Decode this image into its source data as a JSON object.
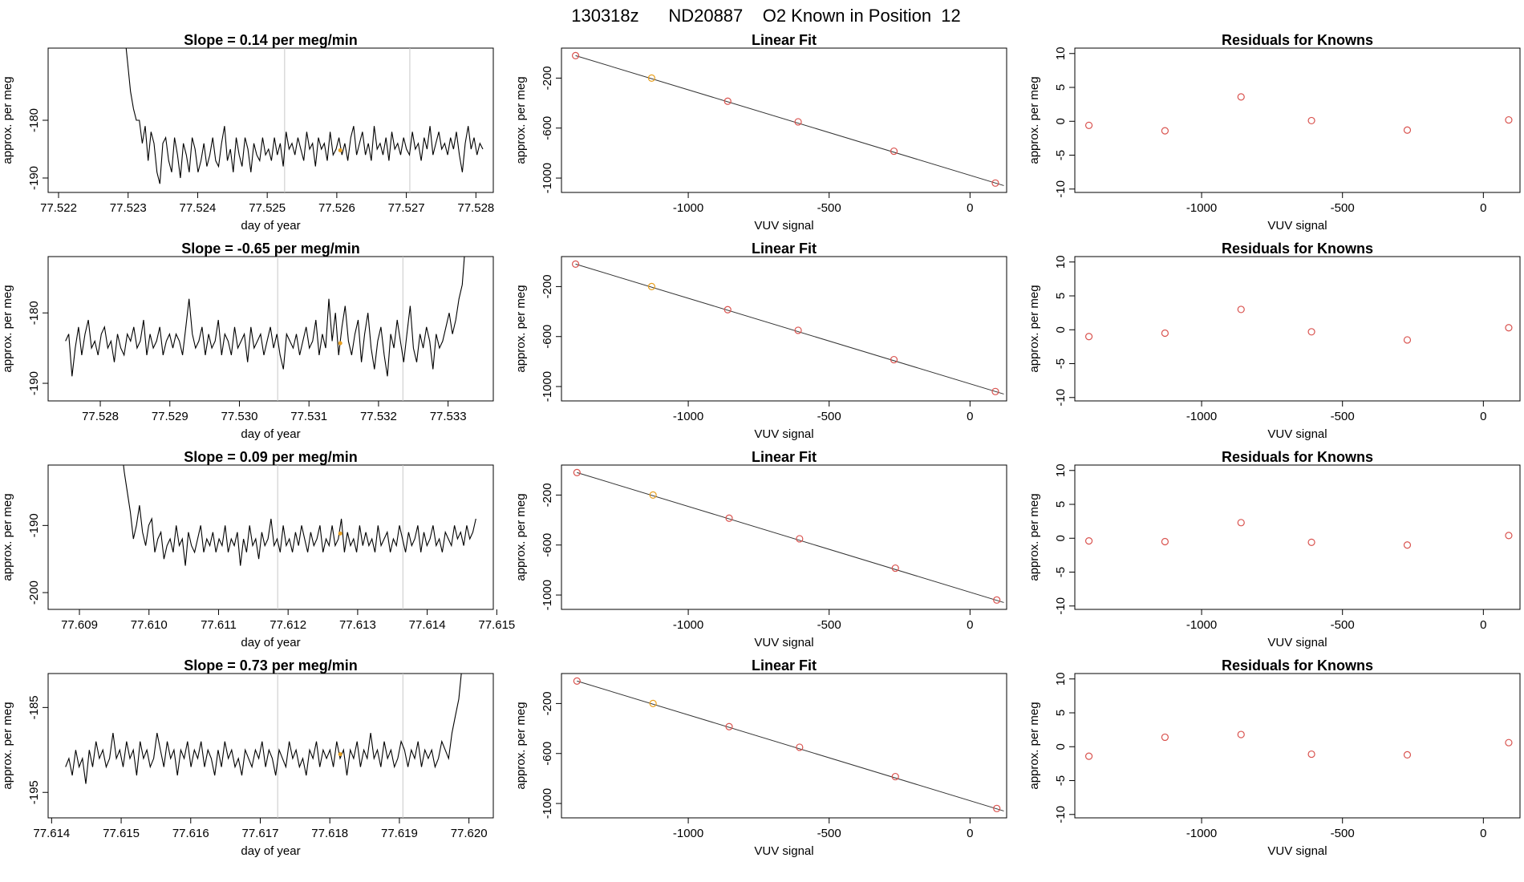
{
  "figure": {
    "title": "130318z      ND20887    O2 Known in Position  12"
  },
  "style": {
    "trace_color": "#000000",
    "vline_color": "#c8c8c8",
    "marker_color": "#e8a020",
    "circle_color": "#d9534f",
    "fit_color": "#333333"
  },
  "chart_data": [
    {
      "type": "line",
      "title": "Slope =  0.14  per meg/min",
      "xlabel": "day of year",
      "ylabel": "approx. per meg",
      "xlim": [
        77.52185,
        77.52825
      ],
      "ylim": [
        -192.5,
        -167.5
      ],
      "xticks": [
        "77.522",
        "77.523",
        "77.524",
        "77.525",
        "77.526",
        "77.527",
        "77.528"
      ],
      "yticks": [
        "-180",
        "-190"
      ],
      "vlines": [
        77.52525,
        77.52705
      ],
      "series_x": [
        77.52295,
        77.5281
      ],
      "series_y": [
        -165,
        -170,
        -175,
        -178,
        -180,
        -180,
        -184,
        -181,
        -187,
        -182,
        -184,
        -189,
        -191,
        -184,
        -183,
        -187,
        -189,
        -183,
        -186,
        -190,
        -184,
        -186,
        -189,
        -183,
        -185,
        -189,
        -187,
        -184,
        -188,
        -186,
        -183,
        -187,
        -188,
        -184,
        -181,
        -187,
        -185,
        -189,
        -183,
        -186,
        -188,
        -183,
        -185,
        -189,
        -184,
        -186,
        -187,
        -183,
        -186,
        -185,
        -187,
        -183,
        -186,
        -184,
        -188,
        -182,
        -185,
        -184,
        -186,
        -183,
        -185,
        -187,
        -182,
        -185,
        -184,
        -188,
        -183,
        -185,
        -184,
        -187,
        -182,
        -186,
        -185,
        -183,
        -186,
        -184,
        -187,
        -183,
        -181,
        -186,
        -184,
        -182,
        -186,
        -184,
        -187,
        -181,
        -185,
        -184,
        -186,
        -183,
        -187,
        -182,
        -185,
        -184,
        -186,
        -183,
        -185,
        -186,
        -182,
        -185,
        -184,
        -187,
        -183,
        -185,
        -181,
        -186,
        -184,
        -182,
        -185,
        -184,
        -186,
        -183,
        -185,
        -182,
        -186,
        -189,
        -184,
        -181,
        -185,
        -183,
        -186,
        -184,
        -185
      ],
      "marker": [
        77.52605,
        -185.2
      ]
    },
    {
      "type": "line",
      "title": "Slope =  -0.65  per meg/min",
      "xlabel": "day of year",
      "ylabel": "approx. per meg",
      "xlim": [
        77.52725,
        77.53365
      ],
      "ylim": [
        -192.5,
        -172
      ],
      "xticks": [
        "77.528",
        "77.529",
        "77.530",
        "77.531",
        "77.532",
        "77.533"
      ],
      "yticks": [
        "-180",
        "-190"
      ],
      "vlines": [
        77.53055,
        77.53235
      ],
      "series_x": [
        77.5275,
        77.53325
      ],
      "series_y": [
        -184,
        -183,
        -189,
        -185,
        -182,
        -186,
        -183,
        -181,
        -185,
        -184,
        -186,
        -183,
        -182,
        -185,
        -184,
        -187,
        -183,
        -185,
        -186,
        -183,
        -184,
        -182,
        -185,
        -184,
        -181,
        -186,
        -183,
        -185,
        -184,
        -182,
        -186,
        -184,
        -183,
        -185,
        -183,
        -184,
        -186,
        -182,
        -178,
        -183,
        -185,
        -184,
        -182,
        -186,
        -183,
        -185,
        -184,
        -181,
        -186,
        -183,
        -184,
        -186,
        -182,
        -185,
        -184,
        -183,
        -187,
        -182,
        -185,
        -184,
        -183,
        -186,
        -184,
        -182,
        -185,
        -183,
        -186,
        -188,
        -183,
        -184,
        -185,
        -183,
        -186,
        -184,
        -182,
        -185,
        -184,
        -181,
        -186,
        -183,
        -185,
        -178,
        -184,
        -180,
        -186,
        -182,
        -179,
        -184,
        -186,
        -183,
        -181,
        -187,
        -183,
        -180,
        -185,
        -188,
        -184,
        -182,
        -186,
        -189,
        -183,
        -185,
        -181,
        -184,
        -187,
        -183,
        -179,
        -185,
        -187,
        -183,
        -185,
        -182,
        -184,
        -188,
        -183,
        -185,
        -184,
        -182,
        -180,
        -183,
        -181,
        -178,
        -176,
        -170
      ],
      "marker": [
        77.53145,
        -184.3
      ]
    },
    {
      "type": "line",
      "title": "Slope =  0.09  per meg/min",
      "xlabel": "day of year",
      "ylabel": "approx. per meg",
      "xlim": [
        77.60855,
        77.61495
      ],
      "ylim": [
        -202.5,
        -181
      ],
      "xticks": [
        "77.609",
        "77.610",
        "77.611",
        "77.612",
        "77.613",
        "77.614",
        "77.615"
      ],
      "yticks": [
        "-190",
        "-200"
      ],
      "vlines": [
        77.61185,
        77.61365
      ],
      "series_x": [
        77.6096,
        77.6147
      ],
      "series_y": [
        -178,
        -182,
        -185,
        -188,
        -192,
        -190,
        -187,
        -191,
        -193,
        -190,
        -189,
        -194,
        -192,
        -191,
        -195,
        -193,
        -192,
        -194,
        -190,
        -193,
        -192,
        -196,
        -191,
        -193,
        -194,
        -192,
        -190,
        -194,
        -192,
        -193,
        -191,
        -194,
        -192,
        -193,
        -190,
        -194,
        -192,
        -193,
        -191,
        -196,
        -192,
        -194,
        -190,
        -193,
        -192,
        -195,
        -191,
        -193,
        -192,
        -189,
        -193,
        -192,
        -194,
        -190,
        -193,
        -192,
        -194,
        -191,
        -193,
        -190,
        -192,
        -194,
        -191,
        -193,
        -192,
        -190,
        -194,
        -192,
        -193,
        -190,
        -193,
        -192,
        -189,
        -194,
        -191,
        -193,
        -192,
        -194,
        -190,
        -193,
        -191,
        -193,
        -192,
        -194,
        -190,
        -193,
        -192,
        -191,
        -194,
        -192,
        -193,
        -190,
        -192,
        -194,
        -191,
        -193,
        -192,
        -190,
        -194,
        -191,
        -193,
        -192,
        -190,
        -193,
        -192,
        -194,
        -191,
        -192,
        -193,
        -190,
        -192,
        -191,
        -193,
        -190,
        -192,
        -191,
        -189
      ],
      "marker": [
        77.61275,
        -191.2
      ]
    },
    {
      "type": "line",
      "title": "Slope =  0.73  per meg/min",
      "xlabel": "day of year",
      "ylabel": "approx. per meg",
      "xlim": [
        77.61395,
        77.62035
      ],
      "ylim": [
        -198,
        -181
      ],
      "xticks": [
        "77.614",
        "77.615",
        "77.616",
        "77.617",
        "77.618",
        "77.619",
        "77.620"
      ],
      "yticks": [
        "-185",
        "-195"
      ],
      "vlines": [
        77.61725,
        77.61905
      ],
      "series_x": [
        77.6142,
        77.62
      ],
      "series_y": [
        -192,
        -191,
        -193,
        -190,
        -192,
        -191,
        -194,
        -190,
        -192,
        -189,
        -191,
        -190,
        -192,
        -191,
        -188,
        -191,
        -190,
        -192,
        -189,
        -191,
        -190,
        -193,
        -189,
        -191,
        -190,
        -192,
        -191,
        -188,
        -190,
        -192,
        -189,
        -191,
        -190,
        -193,
        -190,
        -191,
        -189,
        -192,
        -190,
        -191,
        -189,
        -192,
        -190,
        -191,
        -193,
        -190,
        -192,
        -189,
        -191,
        -190,
        -192,
        -191,
        -193,
        -190,
        -191,
        -192,
        -190,
        -191,
        -189,
        -192,
        -190,
        -191,
        -193,
        -190,
        -191,
        -192,
        -189,
        -191,
        -190,
        -192,
        -191,
        -193,
        -190,
        -191,
        -189,
        -192,
        -190,
        -191,
        -190,
        -192,
        -189,
        -191,
        -190,
        -193,
        -190,
        -191,
        -189,
        -192,
        -190,
        -191,
        -188,
        -191,
        -190,
        -192,
        -189,
        -191,
        -190,
        -192,
        -191,
        -189,
        -190,
        -192,
        -190,
        -191,
        -189,
        -192,
        -190,
        -191,
        -190,
        -192,
        -191,
        -189,
        -190,
        -191,
        -188,
        -186,
        -184,
        -180,
        -176,
        -172
      ],
      "marker": [
        77.61815,
        -190.5
      ]
    },
    {
      "type": "scatter",
      "title": "Linear Fit",
      "xlabel": "VUV signal",
      "ylabel": "approx. per meg",
      "xlim": [
        -1450,
        130
      ],
      "ylim": [
        -1115,
        40
      ],
      "xticks": [
        "-1000",
        "-500",
        "0"
      ],
      "yticks": [
        "-200",
        "-600",
        "-1000"
      ],
      "x": [
        -1400,
        -1130,
        -860,
        -610,
        -270,
        90
      ],
      "y": [
        -20,
        -200,
        -385,
        -550,
        -785,
        -1040
      ],
      "fit": [
        [
          -1400,
          -20
        ],
        [
          120,
          -1060
        ]
      ],
      "highlight_index": 1
    },
    {
      "type": "scatter",
      "title": "Linear Fit",
      "xlabel": "VUV signal",
      "ylabel": "approx. per meg",
      "xlim": [
        -1450,
        130
      ],
      "ylim": [
        -1115,
        40
      ],
      "xticks": [
        "-1000",
        "-500",
        "0"
      ],
      "yticks": [
        "-200",
        "-600",
        "-1000"
      ],
      "x": [
        -1400,
        -1130,
        -860,
        -610,
        -270,
        90
      ],
      "y": [
        -20,
        -200,
        -385,
        -550,
        -785,
        -1040
      ],
      "fit": [
        [
          -1400,
          -20
        ],
        [
          120,
          -1060
        ]
      ],
      "highlight_index": 1
    },
    {
      "type": "scatter",
      "title": "Linear Fit",
      "xlabel": "VUV signal",
      "ylabel": "approx. per meg",
      "xlim": [
        -1450,
        130
      ],
      "ylim": [
        -1115,
        40
      ],
      "xticks": [
        "-1000",
        "-500",
        "0"
      ],
      "yticks": [
        "-200",
        "-600",
        "-1000"
      ],
      "x": [
        -1395,
        -1125,
        -855,
        -605,
        -265,
        95
      ],
      "y": [
        -20,
        -200,
        -385,
        -550,
        -785,
        -1040
      ],
      "fit": [
        [
          -1395,
          -20
        ],
        [
          120,
          -1060
        ]
      ],
      "highlight_index": 1
    },
    {
      "type": "scatter",
      "title": "Linear Fit",
      "xlabel": "VUV signal",
      "ylabel": "approx. per meg",
      "xlim": [
        -1450,
        130
      ],
      "ylim": [
        -1115,
        40
      ],
      "xticks": [
        "-1000",
        "-500",
        "0"
      ],
      "yticks": [
        "-200",
        "-600",
        "-1000"
      ],
      "x": [
        -1395,
        -1125,
        -855,
        -605,
        -265,
        95
      ],
      "y": [
        -20,
        -200,
        -385,
        -550,
        -785,
        -1040
      ],
      "fit": [
        [
          -1395,
          -20
        ],
        [
          120,
          -1060
        ]
      ],
      "highlight_index": 1
    },
    {
      "type": "scatter",
      "title": "Residuals for Knowns",
      "xlabel": "VUV signal",
      "ylabel": "approx. per meg",
      "xlim": [
        -1450,
        130
      ],
      "ylim": [
        -10.5,
        10.8
      ],
      "xticks": [
        "-1000",
        "-500",
        "0"
      ],
      "yticks": [
        "10",
        "5",
        "0",
        "-5",
        "-10"
      ],
      "x": [
        -1400,
        -1130,
        -860,
        -610,
        -270,
        90
      ],
      "y": [
        -0.6,
        -1.4,
        3.6,
        0.1,
        -1.3,
        0.2
      ]
    },
    {
      "type": "scatter",
      "title": "Residuals for Knowns",
      "xlabel": "VUV signal",
      "ylabel": "approx. per meg",
      "xlim": [
        -1450,
        130
      ],
      "ylim": [
        -10.5,
        10.8
      ],
      "xticks": [
        "-1000",
        "-500",
        "0"
      ],
      "yticks": [
        "10",
        "5",
        "0",
        "-5",
        "-10"
      ],
      "x": [
        -1400,
        -1130,
        -860,
        -610,
        -270,
        90
      ],
      "y": [
        -1.0,
        -0.5,
        3.0,
        -0.3,
        -1.5,
        0.3
      ]
    },
    {
      "type": "scatter",
      "title": "Residuals for Knowns",
      "xlabel": "VUV signal",
      "ylabel": "approx. per meg",
      "xlim": [
        -1450,
        130
      ],
      "ylim": [
        -10.5,
        10.8
      ],
      "xticks": [
        "-1000",
        "-500",
        "0"
      ],
      "yticks": [
        "10",
        "5",
        "0",
        "-5",
        "-10"
      ],
      "x": [
        -1400,
        -1130,
        -860,
        -610,
        -270,
        90
      ],
      "y": [
        -0.4,
        -0.5,
        2.3,
        -0.6,
        -1.0,
        0.4
      ]
    },
    {
      "type": "scatter",
      "title": "Residuals for Knowns",
      "xlabel": "VUV signal",
      "ylabel": "approx. per meg",
      "xlim": [
        -1450,
        130
      ],
      "ylim": [
        -10.5,
        10.8
      ],
      "xticks": [
        "-1000",
        "-500",
        "0"
      ],
      "yticks": [
        "10",
        "5",
        "0",
        "-5",
        "-10"
      ],
      "x": [
        -1400,
        -1130,
        -860,
        -610,
        -270,
        90
      ],
      "y": [
        -1.4,
        1.4,
        1.8,
        -1.1,
        -1.2,
        0.6
      ]
    }
  ]
}
